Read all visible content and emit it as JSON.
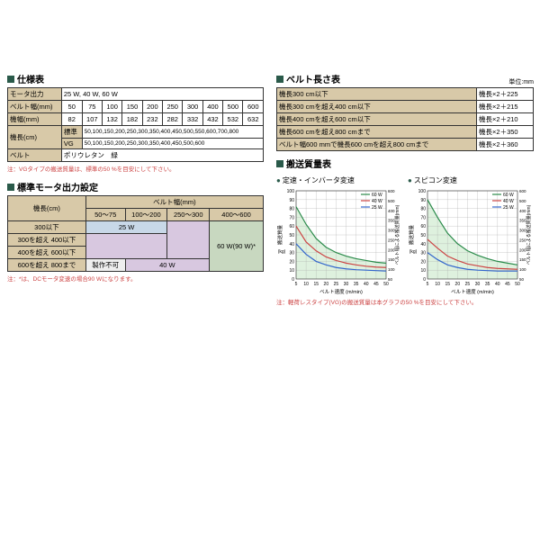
{
  "titles": {
    "spec": "仕様表",
    "belt_len": "ベルト長さ表",
    "motor": "標準モータ出力設定",
    "mass": "搬送質量表",
    "chart1": "定速・インバータ変速",
    "chart2": "スピコン変速"
  },
  "unit_mm": "単位:mm",
  "spec": {
    "r1": [
      "モータ出力",
      "25 W, 40 W, 60 W"
    ],
    "r2": [
      "ベルト幅(mm)",
      "50",
      "75",
      "100",
      "150",
      "200",
      "250",
      "300",
      "400",
      "500",
      "600"
    ],
    "r3": [
      "機幅(mm)",
      "82",
      "107",
      "132",
      "182",
      "232",
      "282",
      "332",
      "432",
      "532",
      "632"
    ],
    "r4": [
      "機長(cm)",
      "標準",
      "50,100,150,200,250,300,350,400,450,500,550,600,700,800"
    ],
    "r5": [
      "VG",
      "50,100,150,200,250,300,350,400,450,500,600"
    ],
    "r6": [
      "ベルト",
      "ポリウレタン　緑"
    ],
    "note": "注：VGタイプの搬送質量は、標準の50 %を目安にして下さい。"
  },
  "belt_len": {
    "rows": [
      [
        "機長300 cm以下",
        "機長×2＋225"
      ],
      [
        "機長300 cmを超え400 cm以下",
        "機長×2＋215"
      ],
      [
        "機長400 cmを超え600 cm以下",
        "機長×2＋210"
      ],
      [
        "機長600 cmを超え800 cmまで",
        "機長×2＋350"
      ],
      [
        "ベルト幅600 mmで機長600 cmを超え800 cmまで",
        "機長×2＋360"
      ]
    ]
  },
  "motor": {
    "col_hdr": "ベルト幅(mm)",
    "row_hdr": "機長(cm)",
    "cols": [
      "50～75",
      "100～200",
      "250～300",
      "400～600"
    ],
    "rows": [
      "300以下",
      "300を超え 400以下",
      "400を超え 600以下",
      "600を超え 800まで"
    ],
    "w25": "25 W",
    "w40": "40 W",
    "w60": "60 W(90 W)*",
    "na": "製作不可",
    "note": "注：*は、DCモータ変速の場合90 Wになります。"
  },
  "chart": {
    "ylabel": "搬送質量",
    "yunit": "(kg)",
    "xlabel": "ベルト速度 (m/min)",
    "y2label": "ベルト幅による搬送質量",
    "y2unit": "(mm)",
    "yticks": [
      0,
      10,
      20,
      30,
      40,
      50,
      60,
      70,
      80,
      90,
      100
    ],
    "xticks": [
      5,
      10,
      15,
      20,
      25,
      30,
      35,
      40,
      45,
      50
    ],
    "y2ticks": [
      50,
      100,
      150,
      200,
      250,
      300,
      350,
      400,
      500,
      600
    ],
    "legend": [
      {
        "label": "60 W",
        "color": "#2a8a4a"
      },
      {
        "label": "40 W",
        "color": "#c44"
      },
      {
        "label": "25 W",
        "color": "#3366cc"
      }
    ],
    "shade_color": "#c8e8c8",
    "series1": {
      "60W": [
        [
          5,
          82
        ],
        [
          10,
          62
        ],
        [
          15,
          46
        ],
        [
          20,
          36
        ],
        [
          25,
          30
        ],
        [
          30,
          26
        ],
        [
          35,
          23
        ],
        [
          40,
          21
        ],
        [
          45,
          19
        ],
        [
          50,
          18
        ]
      ],
      "40W": [
        [
          5,
          60
        ],
        [
          10,
          42
        ],
        [
          15,
          32
        ],
        [
          20,
          25
        ],
        [
          25,
          21
        ],
        [
          30,
          18
        ],
        [
          35,
          16
        ],
        [
          40,
          14.5
        ],
        [
          45,
          13.5
        ],
        [
          50,
          13
        ]
      ],
      "25W": [
        [
          5,
          40
        ],
        [
          10,
          28
        ],
        [
          15,
          20
        ],
        [
          20,
          16
        ],
        [
          25,
          13
        ],
        [
          30,
          11.5
        ],
        [
          35,
          10.5
        ],
        [
          40,
          10
        ],
        [
          45,
          9.5
        ],
        [
          50,
          9
        ]
      ]
    },
    "series2": {
      "60W": [
        [
          5,
          90
        ],
        [
          10,
          70
        ],
        [
          15,
          52
        ],
        [
          20,
          40
        ],
        [
          25,
          32
        ],
        [
          30,
          27
        ],
        [
          35,
          23
        ],
        [
          40,
          20
        ],
        [
          45,
          18
        ],
        [
          50,
          16
        ]
      ],
      "40W": [
        [
          5,
          45
        ],
        [
          10,
          35
        ],
        [
          15,
          26
        ],
        [
          20,
          21
        ],
        [
          25,
          17
        ],
        [
          30,
          15
        ],
        [
          35,
          13
        ],
        [
          40,
          12
        ],
        [
          45,
          11.5
        ],
        [
          50,
          11
        ]
      ],
      "25W": [
        [
          5,
          30
        ],
        [
          10,
          22
        ],
        [
          15,
          16
        ],
        [
          20,
          13
        ],
        [
          25,
          11
        ],
        [
          30,
          10
        ],
        [
          35,
          9.5
        ],
        [
          40,
          9
        ],
        [
          45,
          9
        ],
        [
          50,
          9
        ]
      ]
    },
    "note2": "注：軽荷レスタイプ(VG)の搬送質量は本グラフの50 %を目安にして下さい。"
  }
}
